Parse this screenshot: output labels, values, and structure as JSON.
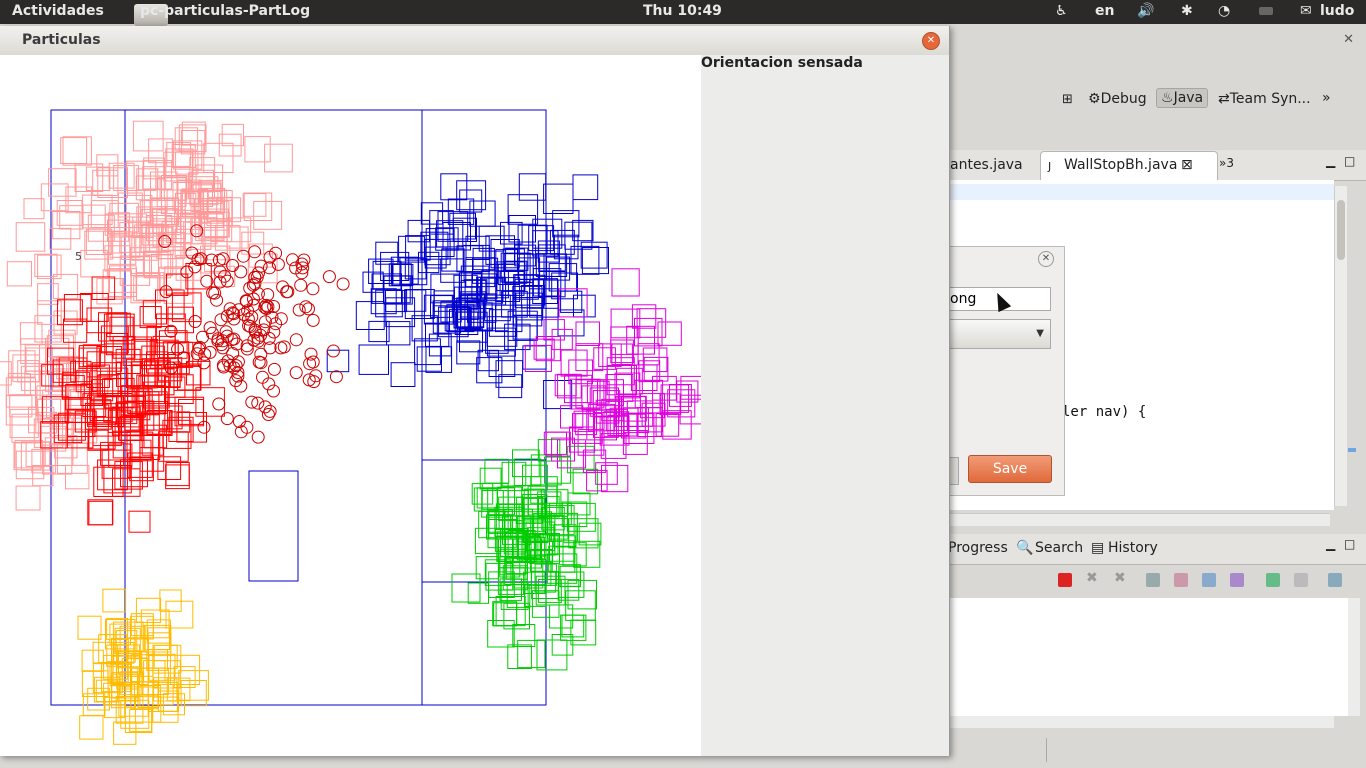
{
  "topbar": {
    "activities": "Actividades",
    "app_title": "pc-particulas-PartLog",
    "clock": "Thu 10:49",
    "language": "en",
    "user": "ludo",
    "icons": [
      "accessibility-icon",
      "volume-icon",
      "bluetooth-icon",
      "wifi-icon",
      "battery-icon",
      "chat-icon"
    ]
  },
  "eclipse": {
    "perspectives": [
      "Debug",
      "Java",
      "Team Syn..."
    ],
    "overflow_label": "»",
    "editor_tabs": [
      "antes.java",
      "WallStopBh.java"
    ],
    "tab_overflow": "»3",
    "code_line": "ler nav) {",
    "bottom_tabs": [
      "Progress",
      "Search",
      "History"
    ]
  },
  "dialog": {
    "field_value": "ong",
    "save_label": "Save"
  },
  "particle_window": {
    "title": "Particulas",
    "side_label": "Orientacion sensada",
    "field_number": "5"
  },
  "colors": {
    "robots": [
      "#ff9999",
      "#ff0000",
      "#ffbb00",
      "#00cc00",
      "#0000cc",
      "#dd00dd"
    ],
    "field_lines": "#0000cc",
    "pose_circles": "#cc0000",
    "save_button": "#e67545"
  }
}
